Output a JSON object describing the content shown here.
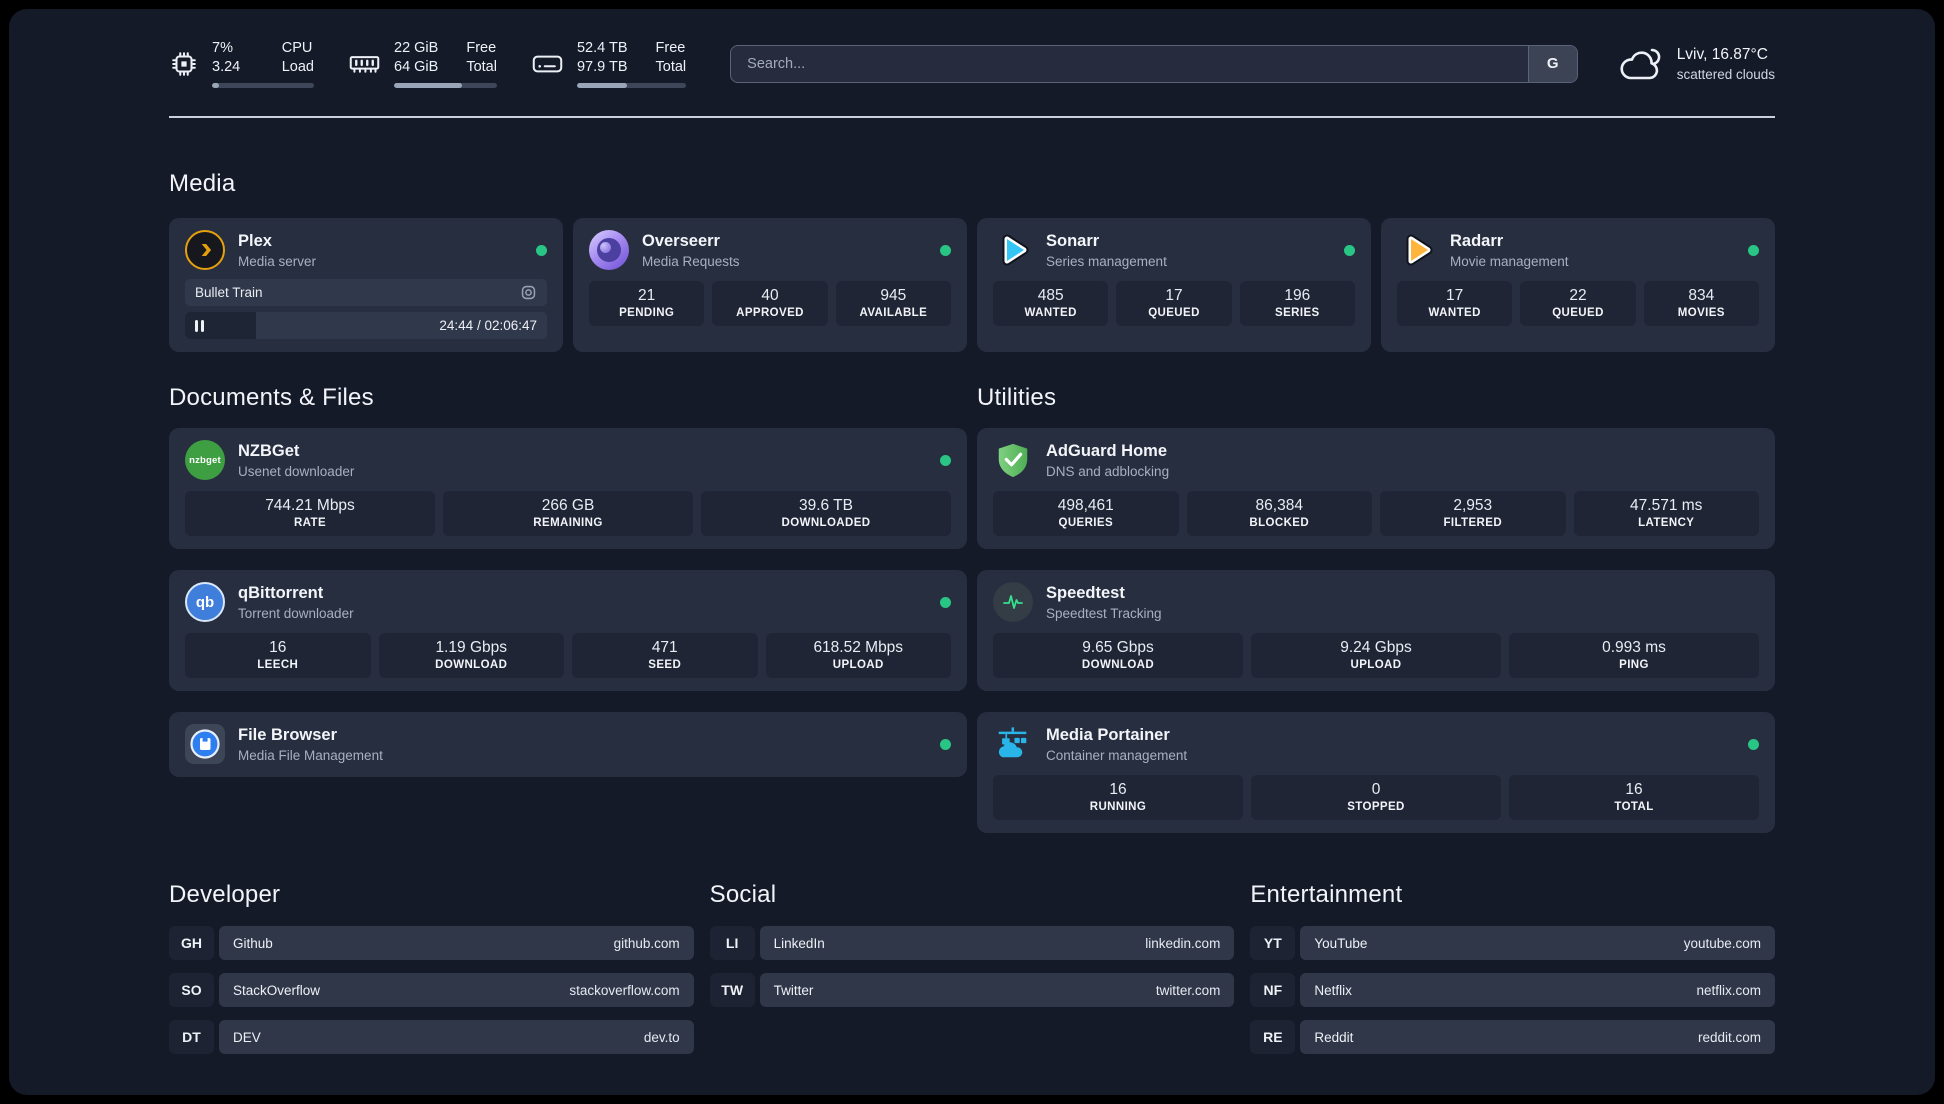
{
  "header": {
    "stats": [
      {
        "icon": "cpu-icon",
        "values": [
          "7%",
          "3.24"
        ],
        "labels": [
          "CPU",
          "Load"
        ],
        "progress_pct": 7
      },
      {
        "icon": "memory-icon",
        "values": [
          "22 GiB",
          "64 GiB"
        ],
        "labels": [
          "Free",
          "Total"
        ],
        "progress_pct": 66
      },
      {
        "icon": "disk-icon",
        "values": [
          "52.4 TB",
          "97.9 TB"
        ],
        "labels": [
          "Free",
          "Total"
        ],
        "progress_pct": 46
      }
    ],
    "search": {
      "placeholder": "Search...",
      "engine_button": "G"
    },
    "weather": {
      "location": "Lviv, 16.87°C",
      "condition": "scattered clouds"
    }
  },
  "sections": {
    "media": {
      "title": "Media"
    },
    "documents": {
      "title": "Documents & Files"
    },
    "utilities": {
      "title": "Utilities"
    },
    "developer": {
      "title": "Developer"
    },
    "social": {
      "title": "Social"
    },
    "entertainment": {
      "title": "Entertainment"
    }
  },
  "apps": {
    "plex": {
      "name": "Plex",
      "desc": "Media server",
      "online": true,
      "now_playing": {
        "title": "Bullet Train",
        "time": "24:44 / 02:06:47",
        "progress_pct": 19.5
      }
    },
    "overseerr": {
      "name": "Overseerr",
      "desc": "Media Requests",
      "online": true,
      "stats": [
        {
          "value": "21",
          "label": "PENDING"
        },
        {
          "value": "40",
          "label": "APPROVED"
        },
        {
          "value": "945",
          "label": "AVAILABLE"
        }
      ]
    },
    "sonarr": {
      "name": "Sonarr",
      "desc": "Series management",
      "online": true,
      "stats": [
        {
          "value": "485",
          "label": "WANTED"
        },
        {
          "value": "17",
          "label": "QUEUED"
        },
        {
          "value": "196",
          "label": "SERIES"
        }
      ]
    },
    "radarr": {
      "name": "Radarr",
      "desc": "Movie management",
      "online": true,
      "stats": [
        {
          "value": "17",
          "label": "WANTED"
        },
        {
          "value": "22",
          "label": "QUEUED"
        },
        {
          "value": "834",
          "label": "MOVIES"
        }
      ]
    },
    "nzbget": {
      "name": "NZBGet",
      "desc": "Usenet downloader",
      "online": true,
      "icon_text": "nzbget",
      "stats": [
        {
          "value": "744.21 Mbps",
          "label": "RATE"
        },
        {
          "value": "266 GB",
          "label": "REMAINING"
        },
        {
          "value": "39.6 TB",
          "label": "DOWNLOADED"
        }
      ]
    },
    "qbittorrent": {
      "name": "qBittorrent",
      "desc": "Torrent downloader",
      "online": true,
      "icon_text": "qb",
      "stats": [
        {
          "value": "16",
          "label": "LEECH"
        },
        {
          "value": "1.19 Gbps",
          "label": "DOWNLOAD"
        },
        {
          "value": "471",
          "label": "SEED"
        },
        {
          "value": "618.52 Mbps",
          "label": "UPLOAD"
        }
      ]
    },
    "filebrowser": {
      "name": "File Browser",
      "desc": "Media File Management",
      "online": true
    },
    "adguard": {
      "name": "AdGuard Home",
      "desc": "DNS and adblocking",
      "online": false,
      "stats": [
        {
          "value": "498,461",
          "label": "QUERIES"
        },
        {
          "value": "86,384",
          "label": "BLOCKED"
        },
        {
          "value": "2,953",
          "label": "FILTERED"
        },
        {
          "value": "47.571 ms",
          "label": "LATENCY"
        }
      ]
    },
    "speedtest": {
      "name": "Speedtest",
      "desc": "Speedtest Tracking",
      "online": false,
      "stats": [
        {
          "value": "9.65 Gbps",
          "label": "DOWNLOAD"
        },
        {
          "value": "9.24 Gbps",
          "label": "UPLOAD"
        },
        {
          "value": "0.993 ms",
          "label": "PING"
        }
      ]
    },
    "portainer": {
      "name": "Media Portainer",
      "desc": "Container management",
      "online": true,
      "stats": [
        {
          "value": "16",
          "label": "RUNNING"
        },
        {
          "value": "0",
          "label": "STOPPED"
        },
        {
          "value": "16",
          "label": "TOTAL"
        }
      ]
    }
  },
  "links": {
    "developer": [
      {
        "abbr": "GH",
        "name": "Github",
        "url": "github.com"
      },
      {
        "abbr": "SO",
        "name": "StackOverflow",
        "url": "stackoverflow.com"
      },
      {
        "abbr": "DT",
        "name": "DEV",
        "url": "dev.to"
      }
    ],
    "social": [
      {
        "abbr": "LI",
        "name": "LinkedIn",
        "url": "linkedin.com"
      },
      {
        "abbr": "TW",
        "name": "Twitter",
        "url": "twitter.com"
      }
    ],
    "entertainment": [
      {
        "abbr": "YT",
        "name": "YouTube",
        "url": "youtube.com"
      },
      {
        "abbr": "NF",
        "name": "Netflix",
        "url": "netflix.com"
      },
      {
        "abbr": "RE",
        "name": "Reddit",
        "url": "reddit.com"
      }
    ]
  },
  "colors": {
    "background": "#151a29",
    "card": "#272e40",
    "stat_box": "#1f2535",
    "pill": "#2f3749",
    "status_online": "#28c585",
    "divider": "#dbe0ea",
    "plex": "#e5a00d",
    "sonarr": "#35c5f4",
    "radarr": "#ffb53c",
    "overseerr": "#8d6ae8",
    "nzbget": "#43a047",
    "qbittorrent": "#3f7edb",
    "adguard": "#5fbb63",
    "speedtest": "#2ee38e",
    "portainer": "#29b5e8",
    "filebrowser": "#2d7ff0"
  }
}
